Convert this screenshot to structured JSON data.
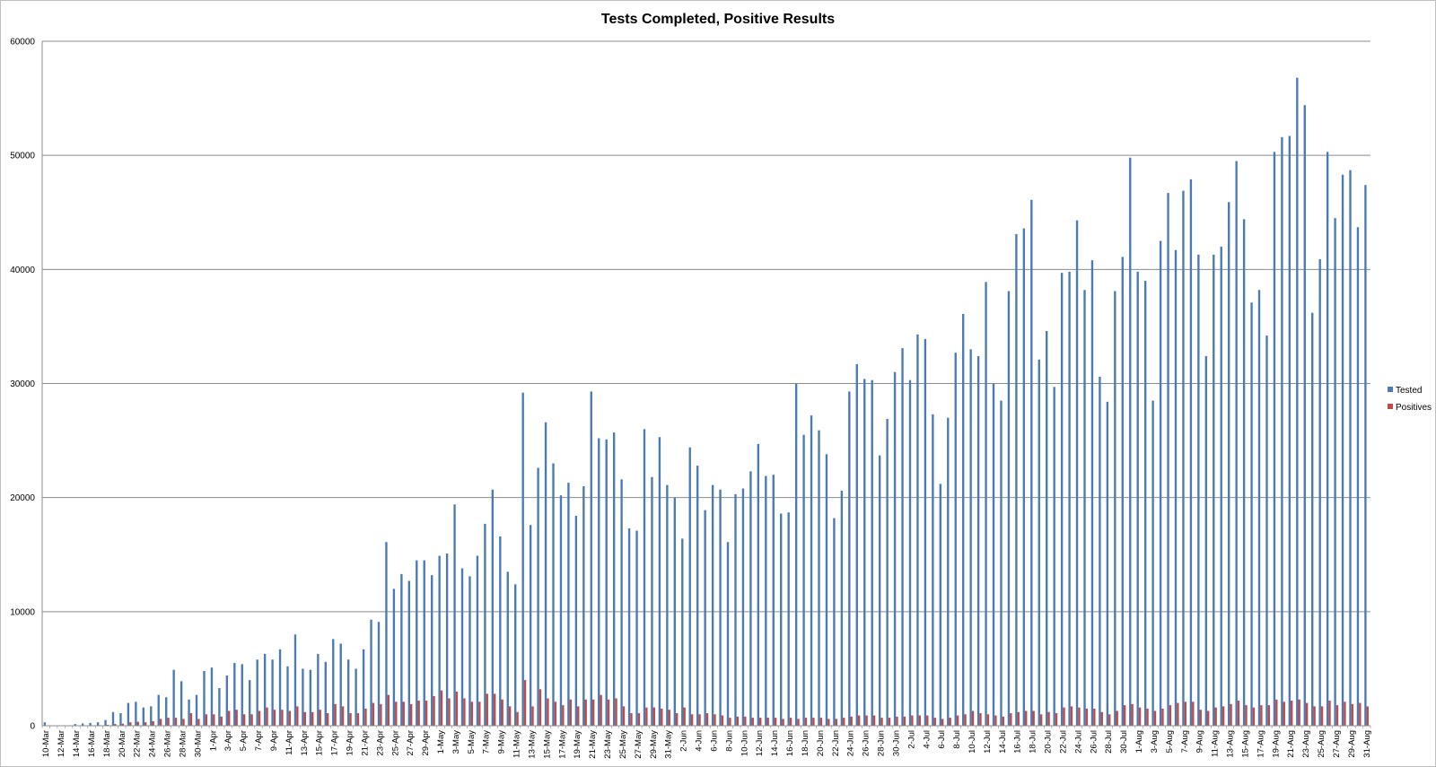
{
  "chart_data": {
    "type": "bar",
    "title": "Tests Completed, Positive Results",
    "xlabel": "",
    "ylabel": "",
    "ylim": [
      0,
      60000
    ],
    "yticks": [
      0,
      10000,
      20000,
      30000,
      40000,
      50000,
      60000
    ],
    "grid": true,
    "legend_position": "right",
    "colors": {
      "Tested": "#4a7bb5",
      "Positives": "#be4b48"
    },
    "categories": [
      "10-Mar",
      "11-Mar",
      "12-Mar",
      "13-Mar",
      "14-Mar",
      "15-Mar",
      "16-Mar",
      "17-Mar",
      "18-Mar",
      "19-Mar",
      "20-Mar",
      "21-Mar",
      "22-Mar",
      "23-Mar",
      "24-Mar",
      "25-Mar",
      "26-Mar",
      "27-Mar",
      "28-Mar",
      "29-Mar",
      "30-Mar",
      "31-Mar",
      "1-Apr",
      "2-Apr",
      "3-Apr",
      "4-Apr",
      "5-Apr",
      "6-Apr",
      "7-Apr",
      "8-Apr",
      "9-Apr",
      "10-Apr",
      "11-Apr",
      "12-Apr",
      "13-Apr",
      "14-Apr",
      "15-Apr",
      "16-Apr",
      "17-Apr",
      "18-Apr",
      "19-Apr",
      "20-Apr",
      "21-Apr",
      "22-Apr",
      "23-Apr",
      "24-Apr",
      "25-Apr",
      "26-Apr",
      "27-Apr",
      "28-Apr",
      "29-Apr",
      "30-Apr",
      "1-May",
      "2-May",
      "3-May",
      "4-May",
      "5-May",
      "6-May",
      "7-May",
      "8-May",
      "9-May",
      "10-May",
      "11-May",
      "12-May",
      "13-May",
      "14-May",
      "15-May",
      "16-May",
      "17-May",
      "18-May",
      "19-May",
      "20-May",
      "21-May",
      "22-May",
      "23-May",
      "24-May",
      "25-May",
      "26-May",
      "27-May",
      "28-May",
      "29-May",
      "30-May",
      "31-May",
      "1-Jun",
      "2-Jun",
      "3-Jun",
      "4-Jun",
      "5-Jun",
      "6-Jun",
      "7-Jun",
      "8-Jun",
      "9-Jun",
      "10-Jun",
      "11-Jun",
      "12-Jun",
      "13-Jun",
      "14-Jun",
      "15-Jun",
      "16-Jun",
      "17-Jun",
      "18-Jun",
      "19-Jun",
      "20-Jun",
      "21-Jun",
      "22-Jun",
      "23-Jun",
      "24-Jun",
      "25-Jun",
      "26-Jun",
      "27-Jun",
      "28-Jun",
      "29-Jun",
      "30-Jun",
      "1-Jul",
      "2-Jul",
      "3-Jul",
      "4-Jul",
      "5-Jul",
      "6-Jul",
      "7-Jul",
      "8-Jul",
      "9-Jul",
      "10-Jul",
      "11-Jul",
      "12-Jul",
      "13-Jul",
      "14-Jul",
      "15-Jul",
      "16-Jul",
      "17-Jul",
      "18-Jul",
      "19-Jul",
      "20-Jul",
      "21-Jul",
      "22-Jul",
      "23-Jul",
      "24-Jul",
      "25-Jul",
      "26-Jul",
      "27-Jul",
      "28-Jul",
      "29-Jul",
      "30-Jul",
      "31-Jul",
      "1-Aug",
      "2-Aug",
      "3-Aug",
      "4-Aug",
      "5-Aug",
      "6-Aug",
      "7-Aug",
      "8-Aug",
      "9-Aug",
      "10-Aug",
      "11-Aug",
      "12-Aug",
      "13-Aug",
      "14-Aug",
      "15-Aug",
      "16-Aug",
      "17-Aug",
      "18-Aug",
      "19-Aug",
      "20-Aug",
      "21-Aug",
      "22-Aug",
      "23-Aug",
      "24-Aug",
      "25-Aug",
      "26-Aug",
      "27-Aug",
      "28-Aug",
      "29-Aug",
      "30-Aug",
      "31-Aug"
    ],
    "tick_labels": [
      "10-Mar",
      "12-Mar",
      "14-Mar",
      "16-Mar",
      "18-Mar",
      "20-Mar",
      "22-Mar",
      "24-Mar",
      "26-Mar",
      "28-Mar",
      "30-Mar",
      "1-Apr",
      "3-Apr",
      "5-Apr",
      "7-Apr",
      "9-Apr",
      "11-Apr",
      "13-Apr",
      "15-Apr",
      "17-Apr",
      "19-Apr",
      "21-Apr",
      "23-Apr",
      "25-Apr",
      "27-Apr",
      "29-Apr",
      "1-May",
      "3-May",
      "5-May",
      "7-May",
      "9-May",
      "11-May",
      "13-May",
      "15-May",
      "17-May",
      "19-May",
      "21-May",
      "23-May",
      "25-May",
      "27-May",
      "29-May",
      "31-May",
      "2-Jun",
      "4-Jun",
      "6-Jun",
      "8-Jun",
      "10-Jun",
      "12-Jun",
      "14-Jun",
      "16-Jun",
      "18-Jun",
      "20-Jun",
      "22-Jun",
      "24-Jun",
      "26-Jun",
      "28-Jun",
      "30-Jun",
      "2-Jul",
      "4-Jul",
      "6-Jul",
      "8-Jul",
      "10-Jul",
      "12-Jul",
      "14-Jul",
      "16-Jul",
      "18-Jul",
      "20-Jul",
      "22-Jul",
      "24-Jul",
      "26-Jul",
      "28-Jul",
      "30-Jul",
      "1-Aug",
      "3-Aug",
      "5-Aug",
      "7-Aug",
      "9-Aug",
      "11-Aug",
      "13-Aug",
      "15-Aug",
      "17-Aug",
      "19-Aug",
      "21-Aug",
      "23-Aug",
      "25-Aug",
      "27-Aug",
      "29-Aug",
      "31-Aug"
    ],
    "series": [
      {
        "name": "Tested",
        "values": [
          300,
          0,
          0,
          0,
          150,
          200,
          250,
          300,
          500,
          1200,
          1100,
          2000,
          2100,
          1600,
          1700,
          2700,
          2500,
          4900,
          3900,
          2300,
          2700,
          4800,
          5100,
          3300,
          4400,
          5500,
          5400,
          4000,
          5800,
          6300,
          5800,
          6700,
          5200,
          8000,
          5000,
          4900,
          6300,
          5600,
          7600,
          7200,
          5800,
          5000,
          6700,
          9300,
          9100,
          16100,
          12000,
          13300,
          12700,
          14500,
          14500,
          13200,
          14900,
          15100,
          19400,
          13800,
          13100,
          14900,
          17700,
          20700,
          16600,
          13500,
          12400,
          29200,
          17600,
          22600,
          26600,
          23000,
          20200,
          21300,
          18400,
          21000,
          29300,
          25200,
          25100,
          25700,
          21600,
          17300,
          17100,
          26000,
          21800,
          25300,
          21100,
          20000,
          16400,
          24400,
          22800,
          18900,
          21100,
          20700,
          16100,
          20300,
          20800,
          22300,
          24700,
          21900,
          22000,
          18600,
          18700,
          30000,
          25500,
          27200,
          25900,
          23800,
          18200,
          20600,
          29300,
          31700,
          30400,
          30300,
          23700,
          26900,
          31000,
          33100,
          30300,
          34300,
          33900,
          27300,
          21200,
          27000,
          32700,
          36100,
          33000,
          32400,
          38900,
          30000,
          28500,
          38100,
          43100,
          43600,
          46100,
          32100,
          34600,
          29700,
          39700,
          39800,
          44300,
          38200,
          40800,
          30600,
          28400,
          38100,
          41100,
          49800,
          39800,
          39000,
          28500,
          42500,
          46700,
          41700,
          46900,
          47900,
          41300,
          32400,
          41300,
          42000,
          45900,
          49500,
          44400,
          37100,
          38200,
          34200,
          50300,
          51600,
          51700,
          56800,
          54400,
          36200,
          40900,
          50300,
          44500,
          48300,
          48700,
          43700,
          47400
        ]
      },
      {
        "name": "Positives",
        "values": [
          0,
          0,
          0,
          0,
          20,
          30,
          40,
          50,
          80,
          150,
          180,
          300,
          350,
          300,
          400,
          600,
          700,
          700,
          600,
          1100,
          600,
          1000,
          1000,
          800,
          1300,
          1400,
          1000,
          1000,
          1300,
          1600,
          1400,
          1400,
          1300,
          1700,
          1200,
          1200,
          1400,
          1100,
          1900,
          1700,
          1100,
          1100,
          1500,
          2000,
          1900,
          2700,
          2100,
          2100,
          1900,
          2200,
          2200,
          2600,
          3100,
          2400,
          3000,
          2400,
          2100,
          2100,
          2800,
          2800,
          2300,
          1700,
          1200,
          4000,
          1700,
          3200,
          2400,
          2100,
          1800,
          2300,
          1700,
          2300,
          2300,
          2700,
          2300,
          2400,
          1700,
          1100,
          1100,
          1600,
          1600,
          1500,
          1400,
          1100,
          1600,
          1000,
          1000,
          1100,
          1000,
          900,
          700,
          800,
          800,
          700,
          700,
          700,
          700,
          600,
          700,
          600,
          700,
          700,
          700,
          600,
          600,
          700,
          800,
          900,
          900,
          900,
          700,
          700,
          800,
          800,
          900,
          900,
          900,
          700,
          600,
          700,
          900,
          1000,
          1300,
          1100,
          1000,
          900,
          800,
          1100,
          1200,
          1300,
          1300,
          1000,
          1200,
          1100,
          1600,
          1700,
          1600,
          1500,
          1500,
          1200,
          1000,
          1300,
          1800,
          1900,
          1600,
          1500,
          1300,
          1500,
          1800,
          2000,
          2100,
          2100,
          1400,
          1300,
          1600,
          1700,
          1900,
          2200,
          1800,
          1600,
          1800,
          1800,
          2300,
          2100,
          2200,
          2300,
          2000,
          1700,
          1700,
          2200,
          1800,
          2100,
          1900,
          2000,
          1700
        ]
      }
    ]
  }
}
